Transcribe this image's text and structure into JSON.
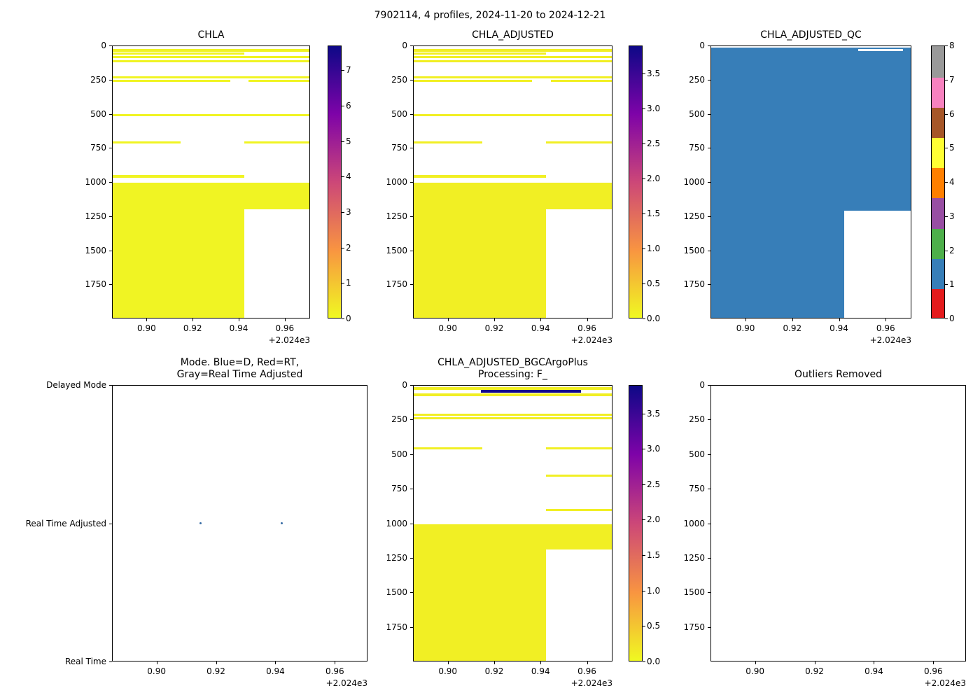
{
  "figure": {
    "suptitle": "7902114, 4 profiles, 2024-11-20 to 2024-12-21"
  },
  "axes_shared": {
    "x_range": [
      0.885,
      0.971
    ],
    "x_ticks": [
      0.9,
      0.92,
      0.94,
      0.96
    ],
    "x_tick_labels": [
      "0.90",
      "0.92",
      "0.94",
      "0.96"
    ],
    "x_offset_label": "+2.024e3",
    "depth_range": [
      0,
      2000
    ],
    "depth_ticks": [
      0,
      250,
      500,
      750,
      1000,
      1250,
      1500,
      1750
    ],
    "y_axis_inverted": true
  },
  "colors": {
    "plasma_r_stops": [
      "#f0f921",
      "#f89441",
      "#cc4778",
      "#7e03a8",
      "#0d0887"
    ],
    "qc_palette": [
      "#e41a1c",
      "#377eb8",
      "#4daf4a",
      "#984ea3",
      "#ff7f00",
      "#ffff33",
      "#a65628",
      "#f781bf",
      "#999999"
    ],
    "scatter_point": "#3a6ea5",
    "axis_color": "#000000",
    "background": "#ffffff"
  },
  "chart_data": [
    {
      "id": "chla",
      "type": "heatmap",
      "title": "CHLA",
      "colorbar": {
        "style": "continuous",
        "vmin": 0,
        "vmax": 7.7,
        "ticks": [
          0,
          1,
          2,
          3,
          4,
          5,
          6,
          7
        ],
        "tick_labels": [
          "0",
          "1",
          "2",
          "3",
          "4",
          "5",
          "6",
          "7"
        ]
      },
      "regions": [
        {
          "x0": 0.885,
          "x1": 0.971,
          "d0": 22,
          "d1": 40,
          "value": 0.1
        },
        {
          "x0": 0.885,
          "x1": 0.942,
          "d0": 48,
          "d1": 64,
          "value": 0.1
        },
        {
          "x0": 0.885,
          "x1": 0.971,
          "d0": 72,
          "d1": 88,
          "value": 0.1
        },
        {
          "x0": 0.885,
          "x1": 0.971,
          "d0": 100,
          "d1": 118,
          "value": 0.1
        },
        {
          "x0": 0.885,
          "x1": 0.971,
          "d0": 218,
          "d1": 236,
          "value": 0.1
        },
        {
          "x0": 0.885,
          "x1": 0.936,
          "d0": 244,
          "d1": 260,
          "value": 0.1
        },
        {
          "x0": 0.944,
          "x1": 0.971,
          "d0": 244,
          "d1": 260,
          "value": 0.1
        },
        {
          "x0": 0.885,
          "x1": 0.971,
          "d0": 498,
          "d1": 514,
          "value": 0.1
        },
        {
          "x0": 0.885,
          "x1": 0.9145,
          "d0": 696,
          "d1": 712,
          "value": 0.1
        },
        {
          "x0": 0.942,
          "x1": 0.971,
          "d0": 696,
          "d1": 712,
          "value": 0.1
        },
        {
          "x0": 0.885,
          "x1": 0.942,
          "d0": 946,
          "d1": 962,
          "value": 0.1
        },
        {
          "x0": 0.885,
          "x1": 0.942,
          "d0": 1000,
          "d1": 2000,
          "value": 0.1
        },
        {
          "x0": 0.942,
          "x1": 0.971,
          "d0": 1000,
          "d1": 1195,
          "value": 0.1
        }
      ]
    },
    {
      "id": "chla_adjusted",
      "type": "heatmap",
      "title": "CHLA_ADJUSTED",
      "colorbar": {
        "style": "continuous",
        "vmin": 0,
        "vmax": 3.9,
        "ticks": [
          0,
          0.5,
          1,
          1.5,
          2,
          2.5,
          3,
          3.5
        ],
        "tick_labels": [
          "0.0",
          "0.5",
          "1.0",
          "1.5",
          "2.0",
          "2.5",
          "3.0",
          "3.5"
        ]
      },
      "regions": [
        {
          "x0": 0.885,
          "x1": 0.971,
          "d0": 22,
          "d1": 40,
          "value": 0.1
        },
        {
          "x0": 0.885,
          "x1": 0.942,
          "d0": 48,
          "d1": 64,
          "value": 0.1
        },
        {
          "x0": 0.885,
          "x1": 0.971,
          "d0": 72,
          "d1": 88,
          "value": 0.1
        },
        {
          "x0": 0.885,
          "x1": 0.971,
          "d0": 100,
          "d1": 118,
          "value": 0.1
        },
        {
          "x0": 0.885,
          "x1": 0.971,
          "d0": 218,
          "d1": 236,
          "value": 0.1
        },
        {
          "x0": 0.885,
          "x1": 0.936,
          "d0": 244,
          "d1": 260,
          "value": 0.1
        },
        {
          "x0": 0.944,
          "x1": 0.971,
          "d0": 244,
          "d1": 260,
          "value": 0.1
        },
        {
          "x0": 0.885,
          "x1": 0.971,
          "d0": 498,
          "d1": 514,
          "value": 0.1
        },
        {
          "x0": 0.885,
          "x1": 0.9145,
          "d0": 696,
          "d1": 712,
          "value": 0.1
        },
        {
          "x0": 0.942,
          "x1": 0.971,
          "d0": 696,
          "d1": 712,
          "value": 0.1
        },
        {
          "x0": 0.885,
          "x1": 0.942,
          "d0": 946,
          "d1": 962,
          "value": 0.1
        },
        {
          "x0": 0.885,
          "x1": 0.942,
          "d0": 1000,
          "d1": 2000,
          "value": 0.1
        },
        {
          "x0": 0.942,
          "x1": 0.971,
          "d0": 1000,
          "d1": 1195,
          "value": 0.1
        }
      ]
    },
    {
      "id": "chla_adjusted_qc",
      "type": "heatmap",
      "title": "CHLA_ADJUSTED_QC",
      "colorbar": {
        "style": "discrete",
        "ticks": [
          0,
          1,
          2,
          3,
          4,
          5,
          6,
          7,
          8
        ],
        "tick_labels": [
          "0",
          "1",
          "2",
          "3",
          "4",
          "5",
          "6",
          "7",
          "8"
        ]
      },
      "regions": [
        {
          "x0": 0.885,
          "x1": 0.942,
          "d0": 12,
          "d1": 2000,
          "value": 1
        },
        {
          "x0": 0.942,
          "x1": 0.971,
          "d0": 12,
          "d1": 1205,
          "value": 1
        },
        {
          "x0": 0.948,
          "x1": 0.967,
          "d0": 22,
          "d1": 36,
          "masked": true
        }
      ]
    },
    {
      "id": "mode",
      "type": "scatter",
      "title": "Mode. Blue=D, Red=RT,\nGray=Real Time Adjusted",
      "y_categories": [
        "Delayed Mode",
        "Real Time Adjusted",
        "Real Time"
      ],
      "points": [
        {
          "x": 0.9145,
          "y": "Real Time Adjusted"
        },
        {
          "x": 0.942,
          "y": "Real Time Adjusted"
        }
      ]
    },
    {
      "id": "chla_adjusted_bgcargoplus",
      "type": "heatmap",
      "title": "CHLA_ADJUSTED_BGCArgoPlus\nProcessing: F_",
      "colorbar": {
        "style": "continuous",
        "vmin": 0,
        "vmax": 3.9,
        "ticks": [
          0,
          0.5,
          1,
          1.5,
          2,
          2.5,
          3,
          3.5
        ],
        "tick_labels": [
          "0.0",
          "0.5",
          "1.0",
          "1.5",
          "2.0",
          "2.5",
          "3.0",
          "3.5"
        ]
      },
      "regions": [
        {
          "x0": 0.885,
          "x1": 0.971,
          "d0": 12,
          "d1": 28,
          "value": 0.1
        },
        {
          "x0": 0.914,
          "x1": 0.957,
          "d0": 32,
          "d1": 50,
          "value": 3.85
        },
        {
          "x0": 0.885,
          "x1": 0.971,
          "d0": 56,
          "d1": 74,
          "value": 0.1
        },
        {
          "x0": 0.885,
          "x1": 0.971,
          "d0": 200,
          "d1": 218,
          "value": 0.1
        },
        {
          "x0": 0.885,
          "x1": 0.971,
          "d0": 226,
          "d1": 243,
          "value": 0.1
        },
        {
          "x0": 0.885,
          "x1": 0.9145,
          "d0": 444,
          "d1": 460,
          "value": 0.1
        },
        {
          "x0": 0.942,
          "x1": 0.971,
          "d0": 444,
          "d1": 460,
          "value": 0.1
        },
        {
          "x0": 0.942,
          "x1": 0.971,
          "d0": 644,
          "d1": 660,
          "value": 0.1
        },
        {
          "x0": 0.942,
          "x1": 0.971,
          "d0": 892,
          "d1": 908,
          "value": 0.1
        },
        {
          "x0": 0.885,
          "x1": 0.942,
          "d0": 1000,
          "d1": 2000,
          "value": 0.1
        },
        {
          "x0": 0.942,
          "x1": 0.971,
          "d0": 1000,
          "d1": 1185,
          "value": 0.1
        }
      ]
    },
    {
      "id": "outliers_removed",
      "type": "heatmap",
      "title": "Outliers Removed",
      "colorbar": null,
      "regions": []
    }
  ]
}
